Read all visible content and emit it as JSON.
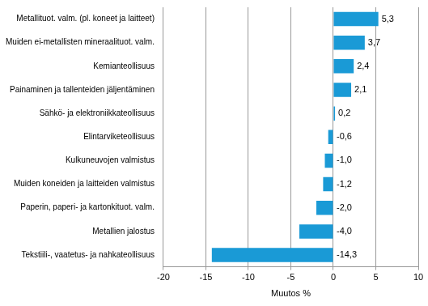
{
  "chart_data": {
    "type": "bar",
    "orientation": "horizontal",
    "categories": [
      "Metallituot. valm. (pl. koneet ja laitteet)",
      "Muiden ei-metallisten mineraalituot. valm.",
      "Kemianteollisuus",
      "Painaminen ja tallenteiden jäljentäminen",
      "Sähkö- ja elektroniikkateollisuus",
      "Elintarviketeollisuus",
      "Kulkuneuvojen valmistus",
      "Muiden koneiden ja laitteiden valmistus",
      "Paperin, paperi- ja kartonkituot. valm.",
      "Metallien jalostus",
      "Tekstiili-, vaatetus- ja nahkateollisuus"
    ],
    "values": [
      5.3,
      3.7,
      2.4,
      2.1,
      0.2,
      -0.6,
      -1.0,
      -1.2,
      -2.0,
      -4.0,
      -14.3
    ],
    "value_labels": [
      "5,3",
      "3,7",
      "2,4",
      "2,1",
      "0,2",
      "-0,6",
      "-1,0",
      "-1,2",
      "-2,0",
      "-4,0",
      "-14,3"
    ],
    "color": "#1a9ad6",
    "x_label": "Muutos %",
    "xlim": [
      -20,
      10
    ],
    "xticks": [
      -20,
      -15,
      -10,
      -5,
      0,
      5,
      10
    ],
    "grid": true,
    "data_labels": true
  }
}
